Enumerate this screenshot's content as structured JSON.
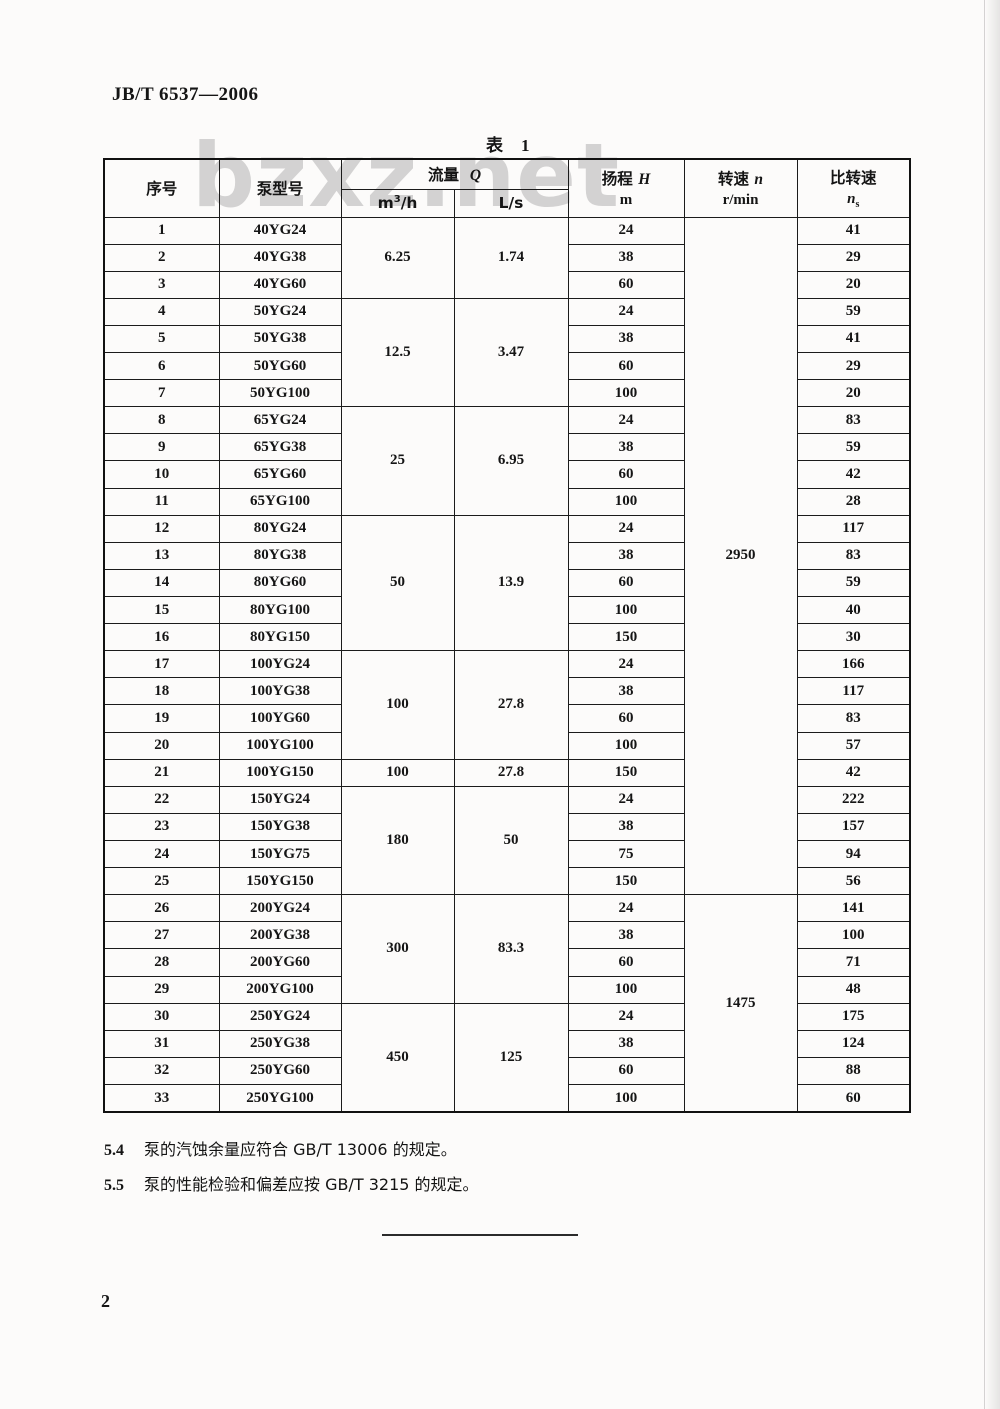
{
  "page": {
    "doc_number": "JB/T 6537—2006",
    "page_number": "2",
    "watermark_text": "bzxz.net"
  },
  "table": {
    "title_label": "表",
    "title_number": "1",
    "headers": {
      "seq": "序号",
      "model": "泵型号",
      "flow_label": "流量",
      "flow_symbol": "Q",
      "flow_unit_m_base": "m",
      "flow_unit_m_sup": "3",
      "flow_unit_m_rest": "/h",
      "flow_unit_ls": "L/s",
      "head_label": "扬程",
      "head_symbol": "H",
      "head_unit": "m",
      "speed_label": "转速",
      "speed_symbol": "n",
      "speed_unit": "r/min",
      "ns_label": "比转速",
      "ns_symbol": "n",
      "ns_symbol_sub": "s"
    },
    "rows": [
      {
        "no": "1",
        "model": "40YG24",
        "head": "24",
        "ns": "41"
      },
      {
        "no": "2",
        "model": "40YG38",
        "head": "38",
        "ns": "29"
      },
      {
        "no": "3",
        "model": "40YG60",
        "head": "60",
        "ns": "20"
      },
      {
        "no": "4",
        "model": "50YG24",
        "head": "24",
        "ns": "59"
      },
      {
        "no": "5",
        "model": "50YG38",
        "head": "38",
        "ns": "41"
      },
      {
        "no": "6",
        "model": "50YG60",
        "head": "60",
        "ns": "29"
      },
      {
        "no": "7",
        "model": "50YG100",
        "head": "100",
        "ns": "20"
      },
      {
        "no": "8",
        "model": "65YG24",
        "head": "24",
        "ns": "83"
      },
      {
        "no": "9",
        "model": "65YG38",
        "head": "38",
        "ns": "59"
      },
      {
        "no": "10",
        "model": "65YG60",
        "head": "60",
        "ns": "42"
      },
      {
        "no": "11",
        "model": "65YG100",
        "head": "100",
        "ns": "28"
      },
      {
        "no": "12",
        "model": "80YG24",
        "head": "24",
        "ns": "117"
      },
      {
        "no": "13",
        "model": "80YG38",
        "head": "38",
        "ns": "83"
      },
      {
        "no": "14",
        "model": "80YG60",
        "head": "60",
        "ns": "59"
      },
      {
        "no": "15",
        "model": "80YG100",
        "head": "100",
        "ns": "40"
      },
      {
        "no": "16",
        "model": "80YG150",
        "head": "150",
        "ns": "30"
      },
      {
        "no": "17",
        "model": "100YG24",
        "head": "24",
        "ns": "166"
      },
      {
        "no": "18",
        "model": "100YG38",
        "head": "38",
        "ns": "117"
      },
      {
        "no": "19",
        "model": "100YG60",
        "head": "60",
        "ns": "83"
      },
      {
        "no": "20",
        "model": "100YG100",
        "head": "100",
        "ns": "57"
      },
      {
        "no": "21",
        "model": "100YG150",
        "head": "150",
        "ns": "42"
      },
      {
        "no": "22",
        "model": "150YG24",
        "head": "24",
        "ns": "222"
      },
      {
        "no": "23",
        "model": "150YG38",
        "head": "38",
        "ns": "157"
      },
      {
        "no": "24",
        "model": "150YG75",
        "head": "75",
        "ns": "94"
      },
      {
        "no": "25",
        "model": "150YG150",
        "head": "150",
        "ns": "56"
      },
      {
        "no": "26",
        "model": "200YG24",
        "head": "24",
        "ns": "141"
      },
      {
        "no": "27",
        "model": "200YG38",
        "head": "38",
        "ns": "100"
      },
      {
        "no": "28",
        "model": "200YG60",
        "head": "60",
        "ns": "71"
      },
      {
        "no": "29",
        "model": "200YG100",
        "head": "100",
        "ns": "48"
      },
      {
        "no": "30",
        "model": "250YG24",
        "head": "24",
        "ns": "175"
      },
      {
        "no": "31",
        "model": "250YG38",
        "head": "38",
        "ns": "124"
      },
      {
        "no": "32",
        "model": "250YG60",
        "head": "60",
        "ns": "88"
      },
      {
        "no": "33",
        "model": "250YG100",
        "head": "100",
        "ns": "60"
      }
    ],
    "flow_groups": [
      {
        "start": 1,
        "end": 3,
        "m3h": "6.25",
        "ls": "1.74"
      },
      {
        "start": 4,
        "end": 7,
        "m3h": "12.5",
        "ls": "3.47"
      },
      {
        "start": 8,
        "end": 11,
        "m3h": "25",
        "ls": "6.95"
      },
      {
        "start": 12,
        "end": 16,
        "m3h": "50",
        "ls": "13.9"
      },
      {
        "start": 17,
        "end": 20,
        "m3h": "100",
        "ls": "27.8"
      },
      {
        "start": 21,
        "end": 21,
        "m3h": "100",
        "ls": "27.8"
      },
      {
        "start": 22,
        "end": 25,
        "m3h": "180",
        "ls": "50"
      },
      {
        "start": 26,
        "end": 29,
        "m3h": "300",
        "ls": "83.3"
      },
      {
        "start": 30,
        "end": 33,
        "m3h": "450",
        "ls": "125"
      }
    ],
    "speed_groups": [
      {
        "start": 1,
        "end": 25,
        "value": "2950"
      },
      {
        "start": 26,
        "end": 33,
        "value": "1475"
      }
    ]
  },
  "notes": [
    {
      "clause": "5.4",
      "text": "泵的汽蚀余量应符合 GB/T 13006 的规定。"
    },
    {
      "clause": "5.5",
      "text": "泵的性能检验和偏差应按 GB/T 3215 的规定。"
    }
  ]
}
